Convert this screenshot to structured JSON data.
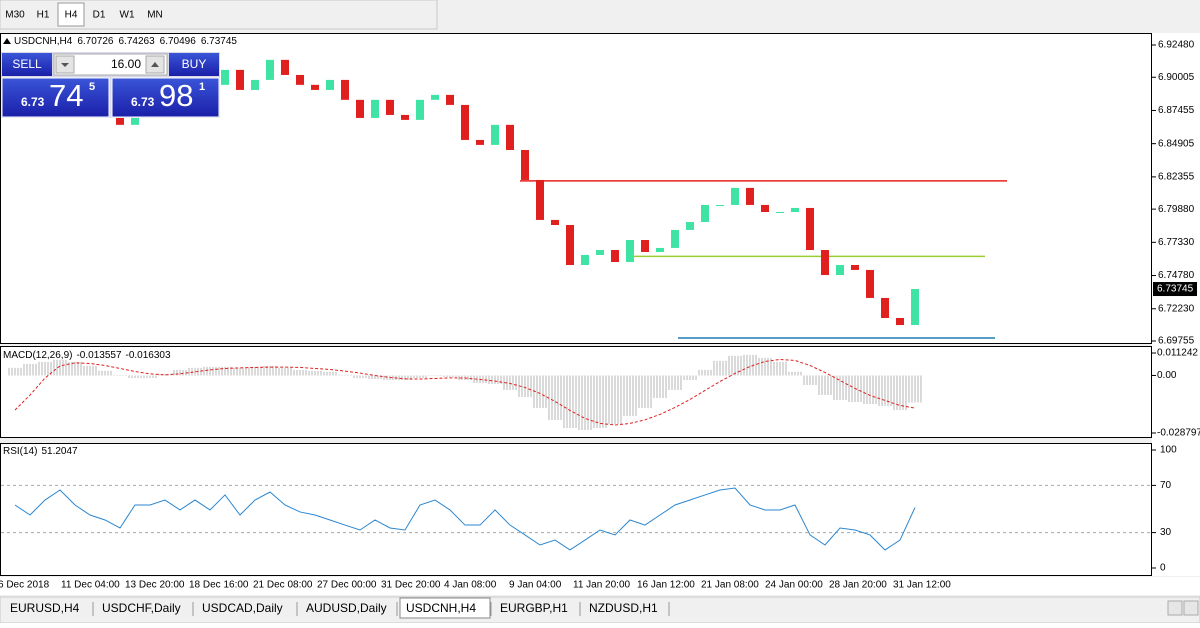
{
  "toolbar": {
    "timeframes": [
      "M30",
      "H1",
      "H4",
      "D1",
      "W1",
      "MN"
    ],
    "active": "H4"
  },
  "chart_data": {
    "type": "candlestick",
    "title": "USDCNH,H4",
    "ohlc": [
      6.70726,
      6.74263,
      6.70496,
      6.73745
    ],
    "closes": [
      6.8865,
      6.8903,
      6.8827,
      6.8942,
      6.8865,
      6.8788,
      6.8827,
      6.8635,
      6.8865,
      6.8942,
      6.898,
      6.8903,
      6.9018,
      6.8942,
      6.9057,
      6.8903,
      6.898,
      6.9134,
      6.9018,
      6.8942,
      6.8903,
      6.898,
      6.8827,
      6.8688,
      6.8827,
      6.8711,
      6.8673,
      6.8827,
      6.8865,
      6.8788,
      6.8519,
      6.8481,
      6.8635,
      6.8442,
      6.8212,
      6.7905,
      6.7866,
      6.7559,
      6.7636,
      6.7674,
      6.7582,
      6.7751,
      6.7659,
      6.769,
      6.7828,
      6.7889,
      6.802,
      6.802,
      6.8151,
      6.802,
      6.7966,
      6.7966,
      6.7997,
      6.7674,
      6.7482,
      6.7559,
      6.7521,
      6.7306,
      6.7152,
      6.7098,
      6.73745
    ],
    "bull_color": "#3fe3a3",
    "bear_color": "#e0201f",
    "ylim": [
      6.69755,
      6.9248
    ],
    "yticks": [
      {
        "value": 6.9248,
        "label": "6.92480"
      },
      6.90005,
      6.87455,
      6.84905,
      6.82355,
      {
        "value": 6.7988,
        "label": "6.79880"
      },
      {
        "value": 6.7733,
        "label": "6.77330"
      },
      {
        "value": 6.7478,
        "label": "6.74780"
      },
      {
        "value": 6.7223,
        "label": "6.72230"
      },
      6.69755
    ],
    "current_price": 6.73745,
    "levels": [
      {
        "value": 6.8205,
        "color": "#e8201e"
      },
      {
        "value": 6.7625,
        "color": "#9acd32"
      },
      {
        "value": 6.6999,
        "color": "#1f7fb0"
      }
    ],
    "x_labels": [
      "6 Dec 2018",
      "11 Dec 04:00",
      "13 Dec 20:00",
      "18 Dec 16:00",
      "21 Dec 08:00",
      "27 Dec 00:00",
      "31 Dec 20:00",
      "4 Jan 08:00",
      "9 Jan 04:00",
      "11 Jan 20:00",
      "16 Jan 12:00",
      "21 Jan 08:00",
      "24 Jan 00:00",
      "28 Jan 20:00",
      "31 Jan 12:00"
    ]
  },
  "trade_panel": {
    "sell": "SELL",
    "buy": "BUY",
    "lots": "16.00",
    "bid": {
      "prefix": "6.73",
      "big": "74",
      "small": "5"
    },
    "ask": {
      "prefix": "6.73",
      "big": "98",
      "small": "1"
    }
  },
  "macd": {
    "name": "MACD(12,26,9)",
    "readings": [
      -0.013557,
      -0.016303
    ],
    "histogram": [
      0.0038,
      0.0058,
      0.0068,
      0.0078,
      0.0068,
      0.0048,
      0.0023,
      -0.0003,
      -0.0013,
      -0.0013,
      0.0008,
      0.0028,
      0.0038,
      0.0043,
      0.0043,
      0.0038,
      0.0043,
      0.0048,
      0.0038,
      0.0028,
      0.0023,
      0.0018,
      0.0003,
      -0.0013,
      -0.0018,
      -0.0023,
      -0.0023,
      -0.0013,
      -0.0003,
      -0.0008,
      -0.0023,
      -0.0038,
      -0.0043,
      -0.0073,
      -0.0108,
      -0.0163,
      -0.0223,
      -0.0263,
      -0.0273,
      -0.0263,
      -0.0243,
      -0.0203,
      -0.0163,
      -0.0113,
      -0.0073,
      -0.0023,
      0.0028,
      0.0073,
      0.0098,
      0.0103,
      0.0088,
      0.0068,
      0.0018,
      -0.0048,
      -0.0098,
      -0.0123,
      -0.0133,
      -0.0143,
      -0.0153,
      -0.0173,
      -0.013557
    ],
    "signal": [
      -0.0173,
      -0.0098,
      -0.0013,
      0.0048,
      0.0063,
      0.006,
      0.005,
      0.0035,
      0.002,
      0.0008,
      0.0003,
      0.0008,
      0.0018,
      0.0028,
      0.0035,
      0.0038,
      0.004,
      0.0042,
      0.0042,
      0.004,
      0.0035,
      0.003,
      0.0022,
      0.0012,
      0.0,
      -0.001,
      -0.0017,
      -0.0018,
      -0.0015,
      -0.0012,
      -0.0013,
      -0.002,
      -0.0028,
      -0.004,
      -0.006,
      -0.009,
      -0.013,
      -0.0175,
      -0.0215,
      -0.024,
      -0.0248,
      -0.024,
      -0.0222,
      -0.0195,
      -0.016,
      -0.012,
      -0.0075,
      -0.003,
      0.001,
      0.0045,
      0.007,
      0.008,
      0.0075,
      0.005,
      0.0015,
      -0.0025,
      -0.0065,
      -0.01,
      -0.0125,
      -0.015,
      -0.016303
    ],
    "histogram_color": "#b4b4b4",
    "signal_color": "#e0201f",
    "ylim": [
      -0.028797,
      0.011242
    ],
    "yticks": [
      0.011242,
      {
        "value": 0,
        "label": "0.00"
      },
      -0.028797
    ]
  },
  "rsi": {
    "name": "RSI(14)",
    "reading": 51.2047,
    "color": "#2a86d0",
    "values": [
      53.4,
      44.9,
      57.6,
      66.1,
      53.4,
      44.9,
      40.7,
      33.9,
      53.4,
      53.4,
      57.6,
      49.2,
      57.6,
      49.2,
      61.9,
      44.9,
      57.6,
      64.4,
      53.4,
      47.5,
      44.9,
      40.7,
      36.4,
      32.2,
      40.7,
      33.9,
      32.2,
      53.4,
      57.6,
      49.2,
      36.4,
      36.4,
      49.2,
      36.4,
      28.0,
      19.5,
      23.7,
      15.3,
      23.7,
      32.2,
      28.0,
      40.7,
      36.4,
      44.9,
      53.4,
      57.6,
      61.9,
      66.1,
      67.8,
      53.4,
      49.2,
      49.2,
      53.4,
      28.0,
      19.5,
      33.9,
      32.2,
      28.0,
      15.3,
      23.7,
      51.2047
    ],
    "ylim": [
      0,
      100
    ],
    "yticks": [
      100,
      70,
      30,
      0
    ],
    "levels": [
      70,
      30
    ]
  },
  "tabs": [
    "EURUSD,H4",
    "USDCHF,Daily",
    "USDCAD,Daily",
    "AUDUSD,Daily",
    "USDCNH,H4",
    "EURGBP,H1",
    "NZDUSD,H1"
  ],
  "active_tab": "USDCNH,H4"
}
